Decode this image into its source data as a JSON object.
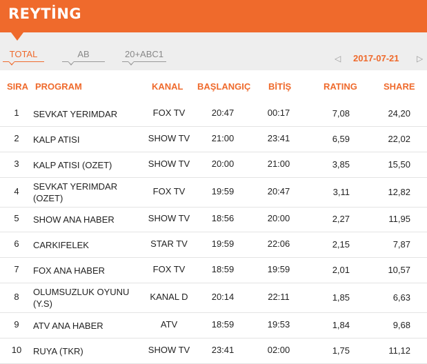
{
  "header": {
    "title": "REYTİNG"
  },
  "tabs": [
    {
      "label": "TOTAL",
      "active": true
    },
    {
      "label": "AB",
      "active": false
    },
    {
      "label": "20+ABC1",
      "active": false
    }
  ],
  "date_nav": {
    "prev": "◁",
    "date": "2017-07-21",
    "next": "▷"
  },
  "columns": {
    "sira": "SIRA",
    "program": "PROGRAM",
    "kanal": "KANAL",
    "baslangic": "BAŞLANGIÇ",
    "bitis": "BİTİŞ",
    "rating": "RATING",
    "share": "SHARE"
  },
  "rows": [
    {
      "sira": "1",
      "program": "SEVKAT YERIMDAR",
      "kanal": "FOX TV",
      "baslangic": "20:47",
      "bitis": "00:17",
      "rating": "7,08",
      "share": "24,20"
    },
    {
      "sira": "2",
      "program": "KALP ATISI",
      "kanal": "SHOW TV",
      "baslangic": "21:00",
      "bitis": "23:41",
      "rating": "6,59",
      "share": "22,02"
    },
    {
      "sira": "3",
      "program": "KALP ATISI (OZET)",
      "kanal": "SHOW TV",
      "baslangic": "20:00",
      "bitis": "21:00",
      "rating": "3,85",
      "share": "15,50"
    },
    {
      "sira": "4",
      "program": "SEVKAT YERIMDAR (OZET)",
      "kanal": "FOX TV",
      "baslangic": "19:59",
      "bitis": "20:47",
      "rating": "3,11",
      "share": "12,82"
    },
    {
      "sira": "5",
      "program": "SHOW ANA HABER",
      "kanal": "SHOW TV",
      "baslangic": "18:56",
      "bitis": "20:00",
      "rating": "2,27",
      "share": "11,95"
    },
    {
      "sira": "6",
      "program": "CARKIFELEK",
      "kanal": "STAR TV",
      "baslangic": "19:59",
      "bitis": "22:06",
      "rating": "2,15",
      "share": "7,87"
    },
    {
      "sira": "7",
      "program": "FOX ANA HABER",
      "kanal": "FOX TV",
      "baslangic": "18:59",
      "bitis": "19:59",
      "rating": "2,01",
      "share": "10,57"
    },
    {
      "sira": "8",
      "program": "OLUMSUZLUK OYUNU (Y.S)",
      "kanal": "KANAL D",
      "baslangic": "20:14",
      "bitis": "22:11",
      "rating": "1,85",
      "share": "6,63"
    },
    {
      "sira": "9",
      "program": "ATV ANA HABER",
      "kanal": "ATV",
      "baslangic": "18:59",
      "bitis": "19:53",
      "rating": "1,84",
      "share": "9,68"
    },
    {
      "sira": "10",
      "program": "RUYA (TKR)",
      "kanal": "SHOW TV",
      "baslangic": "23:41",
      "bitis": "02:00",
      "rating": "1,75",
      "share": "11,12"
    }
  ],
  "colors": {
    "accent": "#ef6a2c",
    "tabbar": "#eeeeee",
    "divider": "#e3e3e3"
  }
}
